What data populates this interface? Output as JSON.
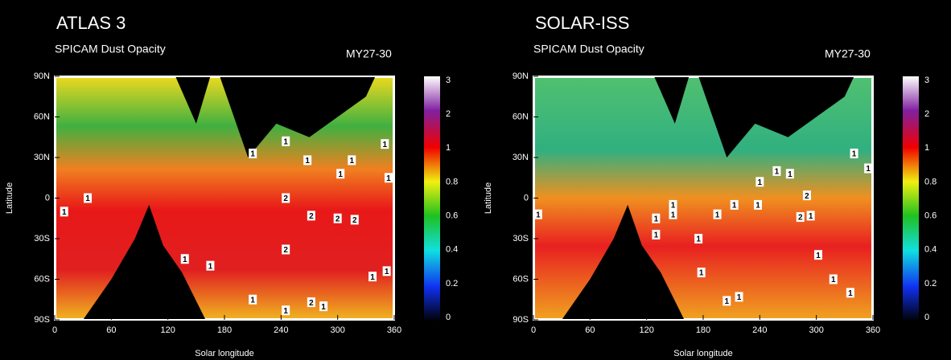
{
  "chart_data": [
    {
      "type": "heatmap",
      "title": "ATLAS 3",
      "subtitle": "SPICAM Dust Opacity",
      "period": "MY27-30",
      "xlabel": "Solar longitude",
      "ylabel": "Latitude",
      "xlim": [
        0,
        360
      ],
      "ylim": [
        -90,
        90
      ],
      "xticks": [
        0,
        60,
        120,
        180,
        240,
        300,
        360
      ],
      "yticks": [
        {
          "value": 90,
          "label": "90N"
        },
        {
          "value": 60,
          "label": "60N"
        },
        {
          "value": 30,
          "label": "30N"
        },
        0,
        {
          "value": -30,
          "label": "30S"
        },
        {
          "value": -60,
          "label": "60S"
        },
        {
          "value": -90,
          "label": "90S"
        }
      ],
      "colorbar_ticks": [
        0,
        0.2,
        0.4,
        0.6,
        0.8,
        1,
        2,
        3
      ],
      "contour_labels": [
        {
          "lon": 10,
          "lat": -10,
          "value": 1
        },
        {
          "lon": 35,
          "lat": 0,
          "value": 1
        },
        {
          "lon": 138,
          "lat": -45,
          "value": 1
        },
        {
          "lon": 165,
          "lat": -50,
          "value": 1
        },
        {
          "lon": 210,
          "lat": 33,
          "value": 1
        },
        {
          "lon": 245,
          "lat": 42,
          "value": 1
        },
        {
          "lon": 268,
          "lat": 28,
          "value": 1
        },
        {
          "lon": 245,
          "lat": 0,
          "value": 2
        },
        {
          "lon": 272,
          "lat": -13,
          "value": 2
        },
        {
          "lon": 300,
          "lat": -15,
          "value": 2
        },
        {
          "lon": 318,
          "lat": -16,
          "value": 2
        },
        {
          "lon": 245,
          "lat": -38,
          "value": 2
        },
        {
          "lon": 303,
          "lat": 18,
          "value": 1
        },
        {
          "lon": 315,
          "lat": 28,
          "value": 1
        },
        {
          "lon": 350,
          "lat": 40,
          "value": 1
        },
        {
          "lon": 354,
          "lat": 15,
          "value": 1
        },
        {
          "lon": 337,
          "lat": -58,
          "value": 1
        },
        {
          "lon": 352,
          "lat": -54,
          "value": 1
        },
        {
          "lon": 210,
          "lat": -75,
          "value": 1
        },
        {
          "lon": 245,
          "lat": -83,
          "value": 1
        },
        {
          "lon": 272,
          "lat": -77,
          "value": 2
        },
        {
          "lon": 285,
          "lat": -80,
          "value": 1
        }
      ]
    },
    {
      "type": "heatmap",
      "title": "SOLAR-ISS",
      "subtitle": "SPICAM Dust Opacity",
      "period": "MY27-30",
      "xlabel": "Solar longitude",
      "ylabel": "Latitude",
      "xlim": [
        0,
        360
      ],
      "ylim": [
        -90,
        90
      ],
      "xticks": [
        0,
        60,
        120,
        180,
        240,
        300,
        360
      ],
      "yticks": [
        {
          "value": 90,
          "label": "90N"
        },
        {
          "value": 60,
          "label": "60N"
        },
        {
          "value": 30,
          "label": "30N"
        },
        0,
        {
          "value": -30,
          "label": "30S"
        },
        {
          "value": -60,
          "label": "60S"
        },
        {
          "value": -90,
          "label": "90S"
        }
      ],
      "colorbar_ticks": [
        0,
        0.2,
        0.4,
        0.6,
        0.8,
        1,
        2,
        3
      ],
      "contour_labels": [
        {
          "lon": 5,
          "lat": -12,
          "value": 1
        },
        {
          "lon": 130,
          "lat": -15,
          "value": 1
        },
        {
          "lon": 130,
          "lat": -27,
          "value": 1
        },
        {
          "lon": 148,
          "lat": -5,
          "value": 1
        },
        {
          "lon": 148,
          "lat": -12,
          "value": 1
        },
        {
          "lon": 175,
          "lat": -30,
          "value": 1
        },
        {
          "lon": 178,
          "lat": -55,
          "value": 1
        },
        {
          "lon": 195,
          "lat": -12,
          "value": 1
        },
        {
          "lon": 213,
          "lat": -5,
          "value": 1
        },
        {
          "lon": 240,
          "lat": 12,
          "value": 1
        },
        {
          "lon": 258,
          "lat": 20,
          "value": 1
        },
        {
          "lon": 272,
          "lat": 18,
          "value": 1
        },
        {
          "lon": 290,
          "lat": 2,
          "value": 2
        },
        {
          "lon": 283,
          "lat": -14,
          "value": 2
        },
        {
          "lon": 294,
          "lat": -13,
          "value": 1
        },
        {
          "lon": 302,
          "lat": -42,
          "value": 1
        },
        {
          "lon": 318,
          "lat": -60,
          "value": 1
        },
        {
          "lon": 336,
          "lat": -70,
          "value": 1
        },
        {
          "lon": 340,
          "lat": 33,
          "value": 1
        },
        {
          "lon": 355,
          "lat": 22,
          "value": 1
        },
        {
          "lon": 205,
          "lat": -76,
          "value": 1
        },
        {
          "lon": 218,
          "lat": -73,
          "value": 1
        },
        {
          "lon": 238,
          "lat": -5,
          "value": 1
        }
      ]
    }
  ]
}
